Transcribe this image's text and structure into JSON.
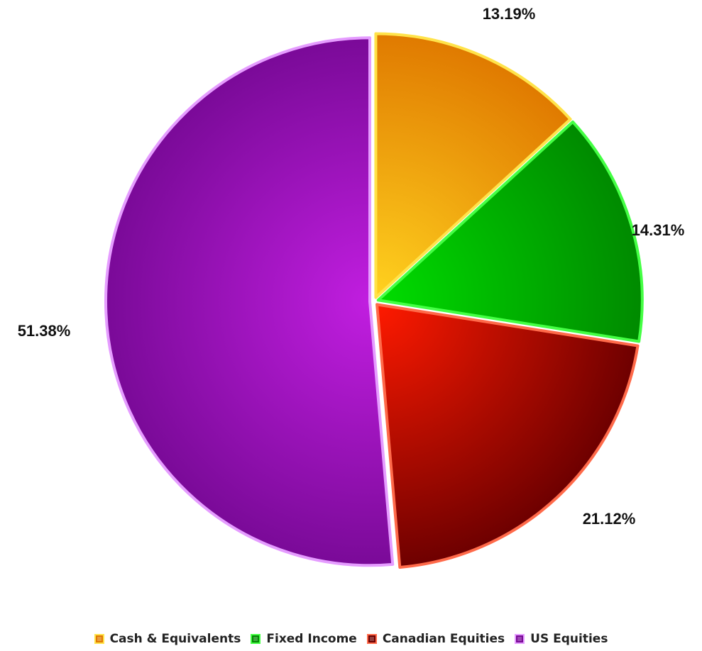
{
  "chart_data": {
    "type": "pie",
    "start_angle_deg": 0,
    "direction": "clockwise",
    "exploded": true,
    "legend_position": "bottom",
    "slices": [
      {
        "name": "Cash & Equivalents",
        "value": 13.19,
        "label": "13.19%",
        "color_light": "#ffd21f",
        "color_dark": "#e07a00",
        "border": "#ffe34a"
      },
      {
        "name": "Fixed Income",
        "value": 14.31,
        "label": "14.31%",
        "color_light": "#00dd00",
        "color_dark": "#008a00",
        "border": "#44ff44"
      },
      {
        "name": "Canadian Equities",
        "value": 21.12,
        "label": "21.12%",
        "color_light": "#ff1a00",
        "color_dark": "#6e0000",
        "border": "#ff6a4a"
      },
      {
        "name": "US Equities",
        "value": 51.38,
        "label": "51.38%",
        "color_light": "#c11ee0",
        "color_dark": "#7a0a98",
        "border": "#e59cff"
      }
    ]
  }
}
